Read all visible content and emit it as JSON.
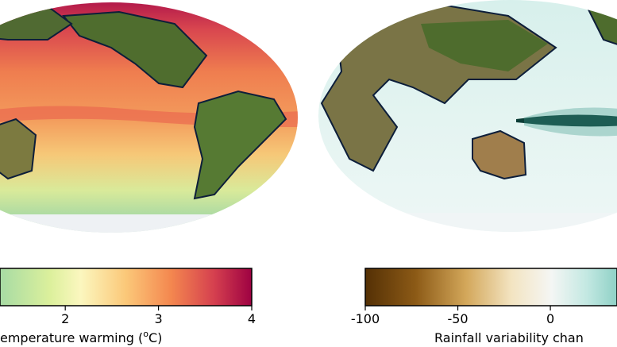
{
  "colorbars": [
    {
      "xlim": [
        1.3,
        4
      ],
      "xticks": [
        2,
        3,
        4
      ],
      "label": {
        "text": "emperature warming (",
        "sup": "o",
        "tail": "C)"
      }
    },
    {
      "xlim": [
        -100,
        36
      ],
      "xticks": [
        -100,
        -50,
        0
      ],
      "label": {
        "text": "Rainfall variability chan"
      }
    }
  ]
}
